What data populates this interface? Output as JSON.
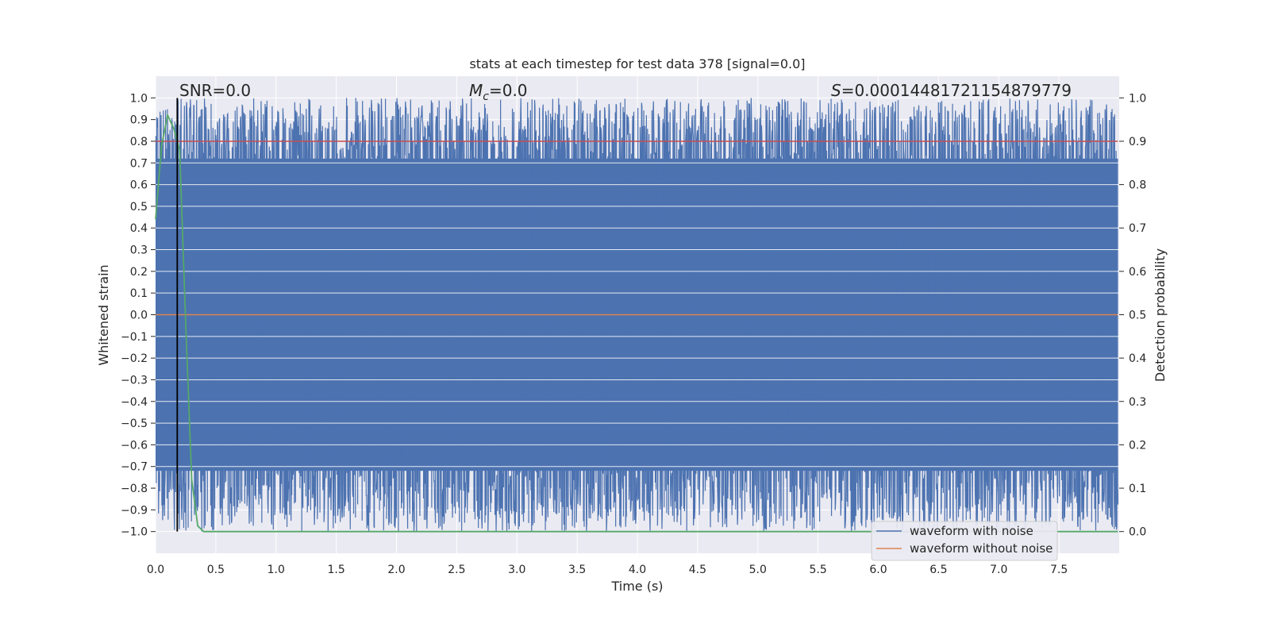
{
  "chart_data": {
    "type": "line",
    "title": "stats at each timestep for test data 378 [signal=0.0]",
    "xlabel": "Time (s)",
    "ylabel_left": "Whitened strain",
    "ylabel_right": "Detection probability",
    "xlim": [
      0.0,
      8.0
    ],
    "ylim_left": [
      -1.1,
      1.1
    ],
    "ylim_right": [
      -0.05,
      1.05
    ],
    "x_ticks": [
      0.0,
      0.5,
      1.0,
      1.5,
      2.0,
      2.5,
      3.0,
      3.5,
      4.0,
      4.5,
      5.0,
      5.5,
      6.0,
      6.5,
      7.0,
      7.5
    ],
    "x_tick_labels": [
      "0.0",
      "0.5",
      "1.0",
      "1.5",
      "2.0",
      "2.5",
      "3.0",
      "3.5",
      "4.0",
      "4.5",
      "5.0",
      "5.5",
      "6.0",
      "6.5",
      "7.0",
      "7.5"
    ],
    "y_left_ticks": [
      1.0,
      0.9,
      0.8,
      0.7,
      0.6,
      0.5,
      0.4,
      0.3,
      0.2,
      0.1,
      0.0,
      -0.1,
      -0.2,
      -0.3,
      -0.4,
      -0.5,
      -0.6,
      -0.7,
      -0.8,
      -0.9,
      -1.0
    ],
    "y_left_tick_labels": [
      "1.0",
      "0.9",
      "0.8",
      "0.7",
      "0.6",
      "0.5",
      "0.4",
      "0.3",
      "0.2",
      "0.1",
      "0.0",
      "−0.1",
      "−0.2",
      "−0.3",
      "−0.4",
      "−0.5",
      "−0.6",
      "−0.7",
      "−0.8",
      "−0.9",
      "−1.0"
    ],
    "y_right_ticks": [
      1.0,
      0.9,
      0.8,
      0.7,
      0.6,
      0.5,
      0.4,
      0.3,
      0.2,
      0.1,
      0.0
    ],
    "y_right_tick_labels": [
      "1.0",
      "0.9",
      "0.8",
      "0.7",
      "0.6",
      "0.5",
      "0.4",
      "0.3",
      "0.2",
      "0.1",
      "0.0"
    ],
    "grid": true,
    "annotations": {
      "snr": "SNR=0.0",
      "mc_symbol": "M",
      "mc_subscript": "c",
      "mc_value": "=0.0",
      "s_symbol": "S",
      "s_value": "=0.00014481721154879779"
    },
    "series": [
      {
        "name": "waveform with noise",
        "color": "#4c72b0",
        "axis": "left",
        "description_stats": {
          "x_start": 0.0,
          "x_end": 7.99,
          "y_min": -1.0,
          "y_max": 1.0
        }
      },
      {
        "name": "waveform without noise",
        "color": "#dd8452",
        "axis": "left",
        "x": [
          0.0,
          7.99
        ],
        "y": [
          0.0,
          0.0
        ]
      },
      {
        "color": "#c44e52",
        "axis": "right",
        "x": [
          0.0,
          7.99
        ],
        "y": [
          0.9,
          0.9
        ]
      },
      {
        "color": "#55a868",
        "axis": "right",
        "x": [
          0.0,
          0.05,
          0.1,
          0.15,
          0.2,
          0.25,
          0.3,
          0.35,
          0.4,
          1.0,
          2.0,
          3.0,
          4.0,
          5.0,
          6.0,
          7.0,
          7.99
        ],
        "y": [
          0.72,
          0.89,
          0.96,
          0.93,
          0.88,
          0.48,
          0.12,
          0.013,
          0.0,
          0.0,
          0.0,
          0.0,
          0.0,
          0.0,
          0.0,
          0.0,
          0.0
        ]
      }
    ],
    "vline": {
      "x": 0.18,
      "color": "#000000"
    },
    "legend": {
      "placement": "lower-right",
      "entries": [
        "waveform with noise",
        "waveform without noise"
      ]
    }
  }
}
